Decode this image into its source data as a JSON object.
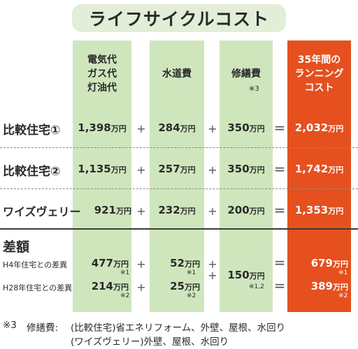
{
  "title": "ライフサイクルコスト",
  "headers": {
    "energy": [
      "電気代",
      "ガス代",
      "灯油代"
    ],
    "water": "水道費",
    "repair": "修繕費",
    "repair_note": "※3",
    "total": [
      "35年間の",
      "ランニング",
      "コスト"
    ]
  },
  "unit": "万円",
  "rows": [
    {
      "label": "比較住宅①",
      "energy": "1,398",
      "water": "284",
      "repair": "350",
      "total": "2,032"
    },
    {
      "label": "比較住宅②",
      "energy": "1,135",
      "water": "257",
      "repair": "350",
      "total": "1,742"
    },
    {
      "label": "ワイズヴェリー",
      "energy": "921",
      "water": "232",
      "repair": "200",
      "total": "1,353"
    }
  ],
  "diff": {
    "label": "差額",
    "sub1": "H4年住宅との差異",
    "sub2": "H28年住宅との差異",
    "energy1": "477",
    "energy1_note": "※1",
    "energy2": "214",
    "energy2_note": "※2",
    "water1": "52",
    "water1_note": "※1",
    "water2": "25",
    "water2_note": "※2",
    "repair": "150",
    "repair_note": "※1,2",
    "total1": "679",
    "total1_note": "※1",
    "total2": "389",
    "total2_note": "※2"
  },
  "symbols": {
    "plus": "+",
    "equals": "="
  },
  "footnote": {
    "mark": "※3",
    "label": "修繕費:",
    "line1": "(比較住宅)省エネリフォーム、外壁、屋根、水回り",
    "line2": "(ワイズヴェリー)外壁、屋根、水回り"
  }
}
